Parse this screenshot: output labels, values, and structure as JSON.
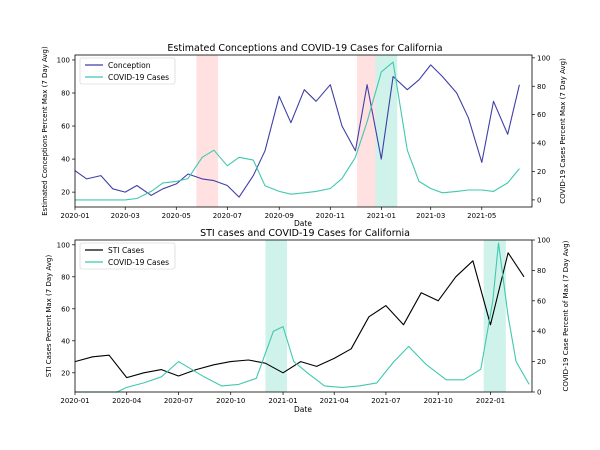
{
  "chart_data": [
    {
      "type": "line",
      "title": "Estimated Conceptions and COVID-19 Cases for California",
      "xlabel": "Date",
      "ylabel": "Estimated Conceptions Percent Max (7 Day Avg)",
      "y2label": "COVID-19 Cases Percent Max (7 Day Avg)",
      "xlim": [
        "2020-01-01",
        "2021-06-30"
      ],
      "ylim": [
        11,
        103
      ],
      "y2lim": [
        -5,
        102
      ],
      "xticks": [
        "2020-01",
        "2020-03",
        "2020-05",
        "2020-07",
        "2020-09",
        "2020-11",
        "2021-01",
        "2021-03",
        "2021-05"
      ],
      "yticks": [
        20,
        40,
        60,
        80,
        100
      ],
      "y2ticks": [
        0,
        20,
        40,
        60,
        80,
        100
      ],
      "legend": "top-left",
      "grid": false,
      "shaded_regions": [
        {
          "start": "2020-05-25",
          "end": "2020-06-20",
          "color": "#ffdcdc"
        },
        {
          "start": "2020-12-03",
          "end": "2020-12-25",
          "color": "#ffdcdc"
        },
        {
          "start": "2020-12-25",
          "end": "2021-01-20",
          "color": "#c7f0e8"
        }
      ],
      "series": [
        {
          "name": "Conception",
          "color": "#3f3fa6",
          "axis": "left",
          "x": [
            "2020-01-01",
            "2020-01-15",
            "2020-02-01",
            "2020-02-15",
            "2020-03-01",
            "2020-03-15",
            "2020-04-01",
            "2020-04-15",
            "2020-05-01",
            "2020-05-15",
            "2020-06-01",
            "2020-06-15",
            "2020-07-01",
            "2020-07-15",
            "2020-08-01",
            "2020-08-15",
            "2020-09-01",
            "2020-09-15",
            "2020-10-01",
            "2020-10-15",
            "2020-11-01",
            "2020-11-15",
            "2020-12-01",
            "2020-12-15",
            "2021-01-01",
            "2021-01-15",
            "2021-02-01",
            "2021-02-15",
            "2021-03-01",
            "2021-03-15",
            "2021-04-01",
            "2021-04-15",
            "2021-05-01",
            "2021-05-15",
            "2021-06-01",
            "2021-06-15"
          ],
          "y": [
            33,
            28,
            30,
            22,
            20,
            24,
            18,
            22,
            25,
            31,
            28,
            27,
            24,
            17,
            30,
            45,
            78,
            62,
            82,
            75,
            85,
            60,
            45,
            85,
            40,
            90,
            82,
            88,
            97,
            90,
            80,
            65,
            38,
            75,
            55,
            85
          ]
        },
        {
          "name": "COVID-19 Cases",
          "color": "#40c8b0",
          "axis": "right",
          "x": [
            "2020-01-01",
            "2020-03-01",
            "2020-03-15",
            "2020-04-01",
            "2020-04-15",
            "2020-05-01",
            "2020-05-15",
            "2020-06-01",
            "2020-06-15",
            "2020-07-01",
            "2020-07-15",
            "2020-08-01",
            "2020-08-15",
            "2020-09-01",
            "2020-09-15",
            "2020-10-01",
            "2020-10-15",
            "2020-11-01",
            "2020-11-15",
            "2020-12-01",
            "2020-12-15",
            "2021-01-01",
            "2021-01-15",
            "2021-02-01",
            "2021-02-15",
            "2021-03-01",
            "2021-03-15",
            "2021-04-01",
            "2021-04-15",
            "2021-05-01",
            "2021-05-15",
            "2021-06-01",
            "2021-06-15"
          ],
          "y": [
            0,
            0,
            1,
            6,
            12,
            13,
            15,
            30,
            35,
            24,
            30,
            28,
            10,
            6,
            4,
            5,
            6,
            8,
            15,
            30,
            55,
            90,
            97,
            35,
            13,
            8,
            5,
            6,
            7,
            7,
            6,
            12,
            22
          ]
        }
      ]
    },
    {
      "type": "line",
      "title": "STI cases and COVID-19 Cases for California",
      "xlabel": "Date",
      "ylabel": "STI Cases Percent Max (7 Day Avg)",
      "y2label": "COVID-19 Case Percent of Max (7 Day Avg)",
      "xlim": [
        "2020-01-01",
        "2022-03-15"
      ],
      "ylim": [
        8,
        103
      ],
      "y2lim": [
        0,
        100
      ],
      "xticks": [
        "2020-01",
        "2020-04",
        "2020-07",
        "2020-10",
        "2021-01",
        "2021-04",
        "2021-07",
        "2021-10",
        "2022-01"
      ],
      "yticks": [
        20,
        40,
        60,
        80,
        100
      ],
      "y2ticks": [
        0,
        20,
        40,
        60,
        80,
        100
      ],
      "legend": "top-left",
      "grid": false,
      "shaded_regions": [
        {
          "start": "2020-12-01",
          "end": "2021-01-08",
          "color": "#c7f0e8"
        },
        {
          "start": "2021-12-20",
          "end": "2022-01-28",
          "color": "#c7f0e8"
        }
      ],
      "series": [
        {
          "name": "STI Cases",
          "color": "#000000",
          "axis": "left",
          "x": [
            "2020-01-01",
            "2020-02-01",
            "2020-03-01",
            "2020-04-01",
            "2020-05-01",
            "2020-06-01",
            "2020-07-01",
            "2020-08-01",
            "2020-09-01",
            "2020-10-01",
            "2020-11-01",
            "2020-12-01",
            "2021-01-01",
            "2021-02-01",
            "2021-03-01",
            "2021-04-01",
            "2021-05-01",
            "2021-06-01",
            "2021-07-01",
            "2021-08-01",
            "2021-09-01",
            "2021-10-01",
            "2021-11-01",
            "2021-12-01",
            "2022-01-01",
            "2022-02-01",
            "2022-03-01"
          ],
          "y": [
            27,
            30,
            31,
            17,
            20,
            22,
            18,
            22,
            25,
            27,
            28,
            26,
            20,
            27,
            24,
            29,
            35,
            55,
            62,
            50,
            70,
            65,
            80,
            90,
            50,
            95,
            80
          ]
        },
        {
          "name": "COVID-19 Cases",
          "color": "#40c8b0",
          "axis": "right",
          "x": [
            "2020-01-01",
            "2020-03-15",
            "2020-04-01",
            "2020-05-01",
            "2020-06-01",
            "2020-07-01",
            "2020-07-15",
            "2020-08-15",
            "2020-09-15",
            "2020-10-15",
            "2020-11-15",
            "2020-12-15",
            "2021-01-01",
            "2021-01-20",
            "2021-02-15",
            "2021-03-15",
            "2021-04-15",
            "2021-05-15",
            "2021-06-15",
            "2021-07-15",
            "2021-08-10",
            "2021-09-10",
            "2021-10-15",
            "2021-11-15",
            "2021-12-15",
            "2022-01-05",
            "2022-01-15",
            "2022-02-01",
            "2022-02-15",
            "2022-03-10"
          ],
          "y": [
            0,
            0,
            3,
            6,
            10,
            20,
            17,
            10,
            4,
            5,
            9,
            40,
            43,
            20,
            12,
            4,
            3,
            4,
            6,
            20,
            30,
            18,
            8,
            8,
            15,
            60,
            98,
            50,
            20,
            5
          ]
        }
      ]
    }
  ]
}
